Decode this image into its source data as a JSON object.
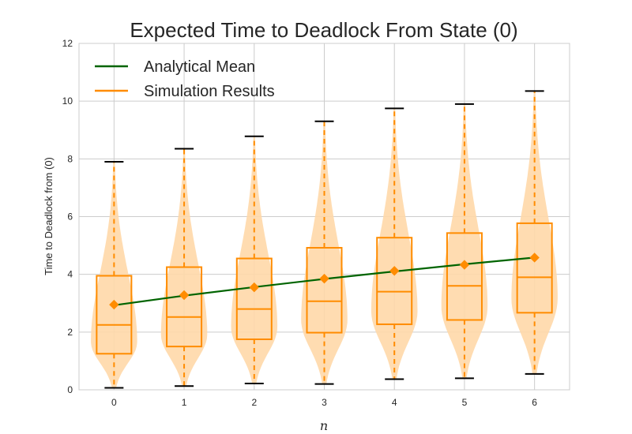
{
  "chart_data": {
    "type": "violin_box",
    "title": "Expected Time to Deadlock From State (0)",
    "xlabel": "n",
    "ylabel": "Time to Deadlock from (0)",
    "ylim": [
      0,
      12
    ],
    "yticks": [
      0,
      2,
      4,
      6,
      8,
      10,
      12
    ],
    "categories": [
      0,
      1,
      2,
      3,
      4,
      5,
      6
    ],
    "grid": true,
    "legend": "top-left",
    "series": [
      {
        "name": "Analytical Mean",
        "kind": "line",
        "color": "#006400",
        "values": [
          2.93,
          3.26,
          3.56,
          3.84,
          4.1,
          4.35,
          4.58
        ]
      },
      {
        "name": "Simulation Results",
        "kind": "box",
        "color": "#ff8c00",
        "violin_color": "#ffd8a8",
        "boxes": [
          {
            "whisker_low": 0.07,
            "q1": 1.25,
            "median": 2.25,
            "q3": 3.95,
            "whisker_high": 7.9,
            "mean": 2.95
          },
          {
            "whisker_low": 0.13,
            "q1": 1.5,
            "median": 2.52,
            "q3": 4.25,
            "whisker_high": 8.35,
            "mean": 3.28
          },
          {
            "whisker_low": 0.22,
            "q1": 1.75,
            "median": 2.8,
            "q3": 4.55,
            "whisker_high": 8.78,
            "mean": 3.55
          },
          {
            "whisker_low": 0.2,
            "q1": 1.98,
            "median": 3.07,
            "q3": 4.92,
            "whisker_high": 9.3,
            "mean": 3.85
          },
          {
            "whisker_low": 0.37,
            "q1": 2.27,
            "median": 3.4,
            "q3": 5.27,
            "whisker_high": 9.75,
            "mean": 4.12
          },
          {
            "whisker_low": 0.4,
            "q1": 2.42,
            "median": 3.6,
            "q3": 5.43,
            "whisker_high": 9.9,
            "mean": 4.33
          },
          {
            "whisker_low": 0.55,
            "q1": 2.67,
            "median": 3.9,
            "q3": 5.77,
            "whisker_high": 10.35,
            "mean": 4.58
          }
        ]
      }
    ]
  }
}
